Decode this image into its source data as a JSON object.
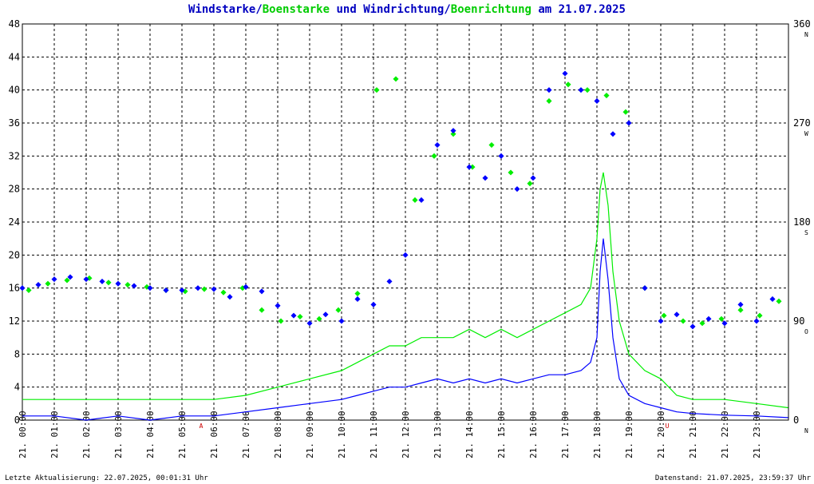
{
  "title": {
    "part1": "Windstarke",
    "sep1": "/",
    "part2": "Boenstarke",
    "mid": " und ",
    "part3": "Windrichtung",
    "sep2": "/",
    "part4": "Boenrichtung",
    "tail": " am 21.07.2025"
  },
  "footer": {
    "left": "Letzte Aktualisierung: 22.07.2025, 00:01:31 Uhr",
    "right": "Datenstand: 21.07.2025, 23:59:37 Uhr"
  },
  "colors": {
    "wind": "#0000ff",
    "gust": "#00ee00",
    "grid": "#000000",
    "text": "#000000",
    "marker": "#cc0000",
    "title_blue": "#0000c0"
  },
  "chart_data": {
    "type": "line",
    "x_ticks": [
      "21. 00:00",
      "21. 01:00",
      "21. 02:00",
      "21. 03:00",
      "21. 04:00",
      "21. 05:00",
      "21. 06:00",
      "21. 07:00",
      "21. 08:00",
      "21. 09:00",
      "21. 10:00",
      "21. 11:00",
      "21. 12:00",
      "21. 13:00",
      "21. 14:00",
      "21. 15:00",
      "21. 16:00",
      "21. 17:00",
      "21. 18:00",
      "21. 19:00",
      "21. 20:00",
      "21. 21:00",
      "21. 22:00",
      "21. 23:00"
    ],
    "xlim_hours": [
      0,
      24
    ],
    "ylim_left": [
      0,
      48
    ],
    "y_ticks_left": [
      0,
      4,
      8,
      12,
      16,
      20,
      24,
      28,
      32,
      36,
      40,
      44,
      48
    ],
    "ylim_right": [
      0,
      360
    ],
    "y_ticks_right": [
      0,
      90,
      180,
      270,
      360
    ],
    "y_ticks_right_letters": [
      "N",
      "O",
      "S",
      "W",
      "N"
    ],
    "time_markers": [
      {
        "hour": 5.6,
        "label": "A"
      },
      {
        "hour": 20.2,
        "label": "U"
      }
    ],
    "grid": true,
    "series": [
      {
        "name": "Windstarke",
        "style": "line",
        "color": "#0000ff",
        "axis": "left",
        "x": [
          0,
          1,
          2,
          3,
          4,
          5,
          6,
          7,
          8,
          9,
          10,
          10.5,
          11,
          11.5,
          12,
          12.5,
          13,
          13.5,
          14,
          14.5,
          15,
          15.5,
          16,
          16.5,
          17,
          17.5,
          17.8,
          18,
          18.1,
          18.2,
          18.35,
          18.5,
          18.7,
          19,
          19.5,
          20,
          20.5,
          21,
          22,
          23,
          23.99
        ],
        "y": [
          0.5,
          0.5,
          0,
          0.5,
          0,
          0.5,
          0.5,
          1,
          1.5,
          2,
          2.5,
          3,
          3.5,
          4,
          4,
          4.5,
          5,
          4.5,
          5,
          4.5,
          5,
          4.5,
          5,
          5.5,
          5.5,
          6,
          7,
          10,
          18,
          22,
          17,
          10,
          5,
          3,
          2,
          1.5,
          1,
          0.8,
          0.6,
          0.5,
          0.3
        ]
      },
      {
        "name": "Boenstarke",
        "style": "line",
        "color": "#00ee00",
        "axis": "left",
        "x": [
          0,
          1,
          2,
          3,
          4,
          5,
          6,
          7,
          8,
          9,
          10,
          10.5,
          11,
          11.5,
          12,
          12.5,
          13,
          13.5,
          14,
          14.5,
          15,
          15.5,
          16,
          16.5,
          17,
          17.5,
          17.8,
          18,
          18.1,
          18.2,
          18.35,
          18.5,
          18.7,
          19,
          19.5,
          20,
          20.5,
          21,
          22,
          23,
          23.99
        ],
        "y": [
          2.5,
          2.5,
          2.5,
          2.5,
          2.5,
          2.5,
          2.5,
          3,
          4,
          5,
          6,
          7,
          8,
          9,
          9,
          10,
          10,
          10,
          11,
          10,
          11,
          10,
          11,
          12,
          13,
          14,
          16,
          22,
          28,
          30,
          26,
          18,
          12,
          8,
          6,
          5,
          3,
          2.5,
          2.5,
          2,
          1.5
        ]
      },
      {
        "name": "Windrichtung",
        "style": "scatter",
        "color": "#0000ff",
        "axis": "right",
        "x": [
          0,
          0.5,
          1,
          1.5,
          2,
          2.5,
          3,
          3.5,
          4,
          4.5,
          5,
          5.5,
          6,
          6.5,
          7,
          7.5,
          8,
          8.5,
          9,
          9.5,
          10,
          10.5,
          11,
          11.5,
          12,
          12.5,
          13,
          13.5,
          14,
          14.5,
          15,
          15.5,
          16,
          16.5,
          17,
          17.5,
          18,
          18.5,
          19,
          19.5,
          20,
          20.5,
          21,
          21.5,
          22,
          22.5,
          23,
          23.5
        ],
        "y": [
          120,
          123,
          128,
          130,
          128,
          126,
          124,
          122,
          120,
          118,
          118,
          120,
          119,
          112,
          121,
          117,
          104,
          95,
          88,
          96,
          90,
          110,
          105,
          126,
          150,
          200,
          250,
          263,
          230,
          220,
          240,
          210,
          220,
          300,
          315,
          300,
          290,
          260,
          270,
          120,
          90,
          96,
          85,
          92,
          88,
          105,
          90,
          110
        ]
      },
      {
        "name": "Boenrichtung",
        "style": "scatter",
        "color": "#00ee00",
        "axis": "right",
        "x": [
          0.2,
          0.8,
          1.4,
          2.1,
          2.7,
          3.3,
          3.9,
          4.5,
          5.1,
          5.7,
          6.3,
          6.9,
          7.5,
          8.1,
          8.7,
          9.3,
          9.9,
          10.5,
          11.1,
          11.7,
          12.3,
          12.9,
          13.5,
          14.1,
          14.7,
          15.3,
          15.9,
          16.5,
          17.1,
          17.7,
          18.3,
          18.9,
          19.5,
          20.1,
          20.7,
          21.3,
          21.9,
          22.5,
          23.1,
          23.7
        ],
        "y": [
          118,
          124,
          127,
          129,
          125,
          123,
          121,
          118,
          117,
          119,
          116,
          120,
          100,
          90,
          94,
          92,
          100,
          115,
          300,
          310,
          200,
          240,
          260,
          230,
          250,
          225,
          215,
          290,
          305,
          300,
          295,
          280,
          120,
          95,
          90,
          88,
          92,
          100,
          95,
          108
        ]
      }
    ]
  }
}
